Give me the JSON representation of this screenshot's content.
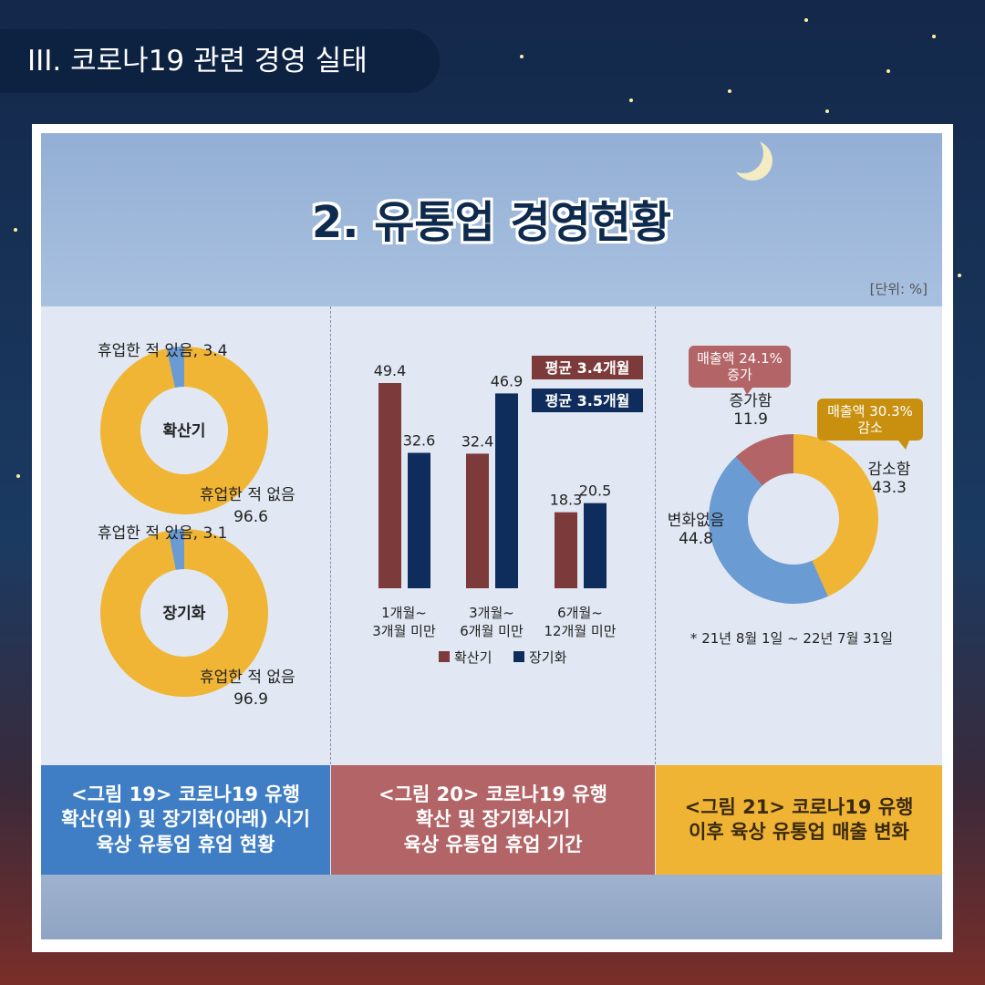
{
  "section_tab": "III. 코로나19 관련 경영 실태",
  "title": "2. 유통업 경영현황",
  "unit": "[단위: %]",
  "colors": {
    "yellow": "#f0b534",
    "blue_light": "#6a9bd2",
    "maroon": "#7d3a3a",
    "navy": "#0f2d5c",
    "rose": "#b36466"
  },
  "chart_data": [
    {
      "type": "pie",
      "center_label": "확산기",
      "labels": [
        "휴업한 적 있음, 3.4",
        "휴업한 적 없음",
        "96.6"
      ],
      "slices": [
        {
          "name": "휴업한 적 있음",
          "value": 3.4
        },
        {
          "name": "휴업한 적 없음",
          "value": 96.6
        }
      ]
    },
    {
      "type": "pie",
      "center_label": "장기화",
      "labels": [
        "휴업한 적 있음, 3.1",
        "휴업한 적 없음",
        "96.9"
      ],
      "slices": [
        {
          "name": "휴업한 적 있음",
          "value": 3.1
        },
        {
          "name": "휴업한 적 없음",
          "value": 96.9
        }
      ]
    },
    {
      "type": "bar",
      "categories": [
        [
          "1개월~",
          "3개월 미만"
        ],
        [
          "3개월~",
          "6개월 미만"
        ],
        [
          "6개월~",
          "12개월 미만"
        ]
      ],
      "series": [
        {
          "name": "확산기",
          "values": [
            49.4,
            32.4,
            18.3
          ]
        },
        {
          "name": "장기화",
          "values": [
            32.6,
            46.9,
            20.5
          ]
        }
      ],
      "value_labels": [
        [
          "49.4",
          "32.4",
          "18.3"
        ],
        [
          "32.6",
          "46.9",
          "20.5"
        ]
      ],
      "badges": [
        "평균 3.4개월",
        "평균 3.5개월"
      ],
      "ylim": [
        0,
        60
      ]
    },
    {
      "type": "pie",
      "slices": [
        {
          "name": "감소함",
          "value": 43.3,
          "label": [
            "감소함",
            "43.3"
          ]
        },
        {
          "name": "변화없음",
          "value": 44.8,
          "label": [
            "변화없음",
            "44.8"
          ]
        },
        {
          "name": "증가함",
          "value": 11.9,
          "label": [
            "증가함",
            "11.9"
          ]
        }
      ],
      "callouts": [
        [
          "매출액 24.1%",
          "증가"
        ],
        [
          "매출액 30.3%",
          "감소"
        ]
      ],
      "note": "* 21년 8월 1일 ~ 22년 7월 31일"
    }
  ],
  "captions": [
    "<그림 19> 코로나19 유행\n확산(위) 및 장기화(아래) 시기\n육상 유통업 휴업 현황",
    "<그림 20> 코로나19 유행\n확산 및 장기화시기\n육상 유통업 휴업 기간",
    "<그림 21> 코로나19 유행\n이후 육상 유통업 매출 변화"
  ]
}
